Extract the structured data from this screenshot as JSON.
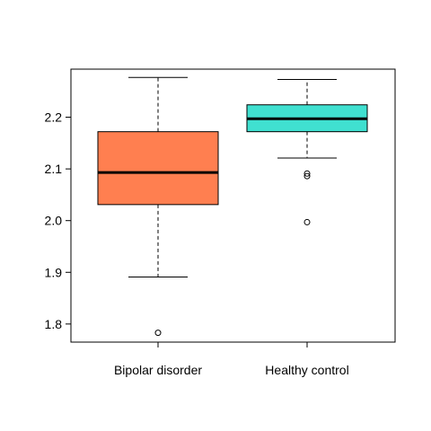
{
  "chart_data": {
    "type": "boxplot",
    "title": "",
    "xlabel": "",
    "ylabel": "",
    "ylim": [
      1.765,
      2.293
    ],
    "yticks": [
      1.8,
      1.9,
      2.0,
      2.1,
      2.2
    ],
    "ytick_labels": [
      "1.8",
      "1.9",
      "2.0",
      "2.1",
      "2.2"
    ],
    "categories": [
      "Bipolar disorder",
      "Healthy control"
    ],
    "boxes": [
      {
        "category": "Bipolar disorder",
        "color": "#FF7F50",
        "whisker_low": 1.891,
        "q1": 2.031,
        "median": 2.093,
        "q3": 2.172,
        "whisker_high": 2.277,
        "outliers": [
          1.783
        ]
      },
      {
        "category": "Healthy control",
        "color": "#40E0D0",
        "whisker_low": 2.121,
        "q1": 2.172,
        "median": 2.197,
        "q3": 2.224,
        "whisker_high": 2.273,
        "outliers": [
          2.091,
          2.086,
          1.997
        ]
      }
    ],
    "grid": false,
    "legend": "none"
  }
}
